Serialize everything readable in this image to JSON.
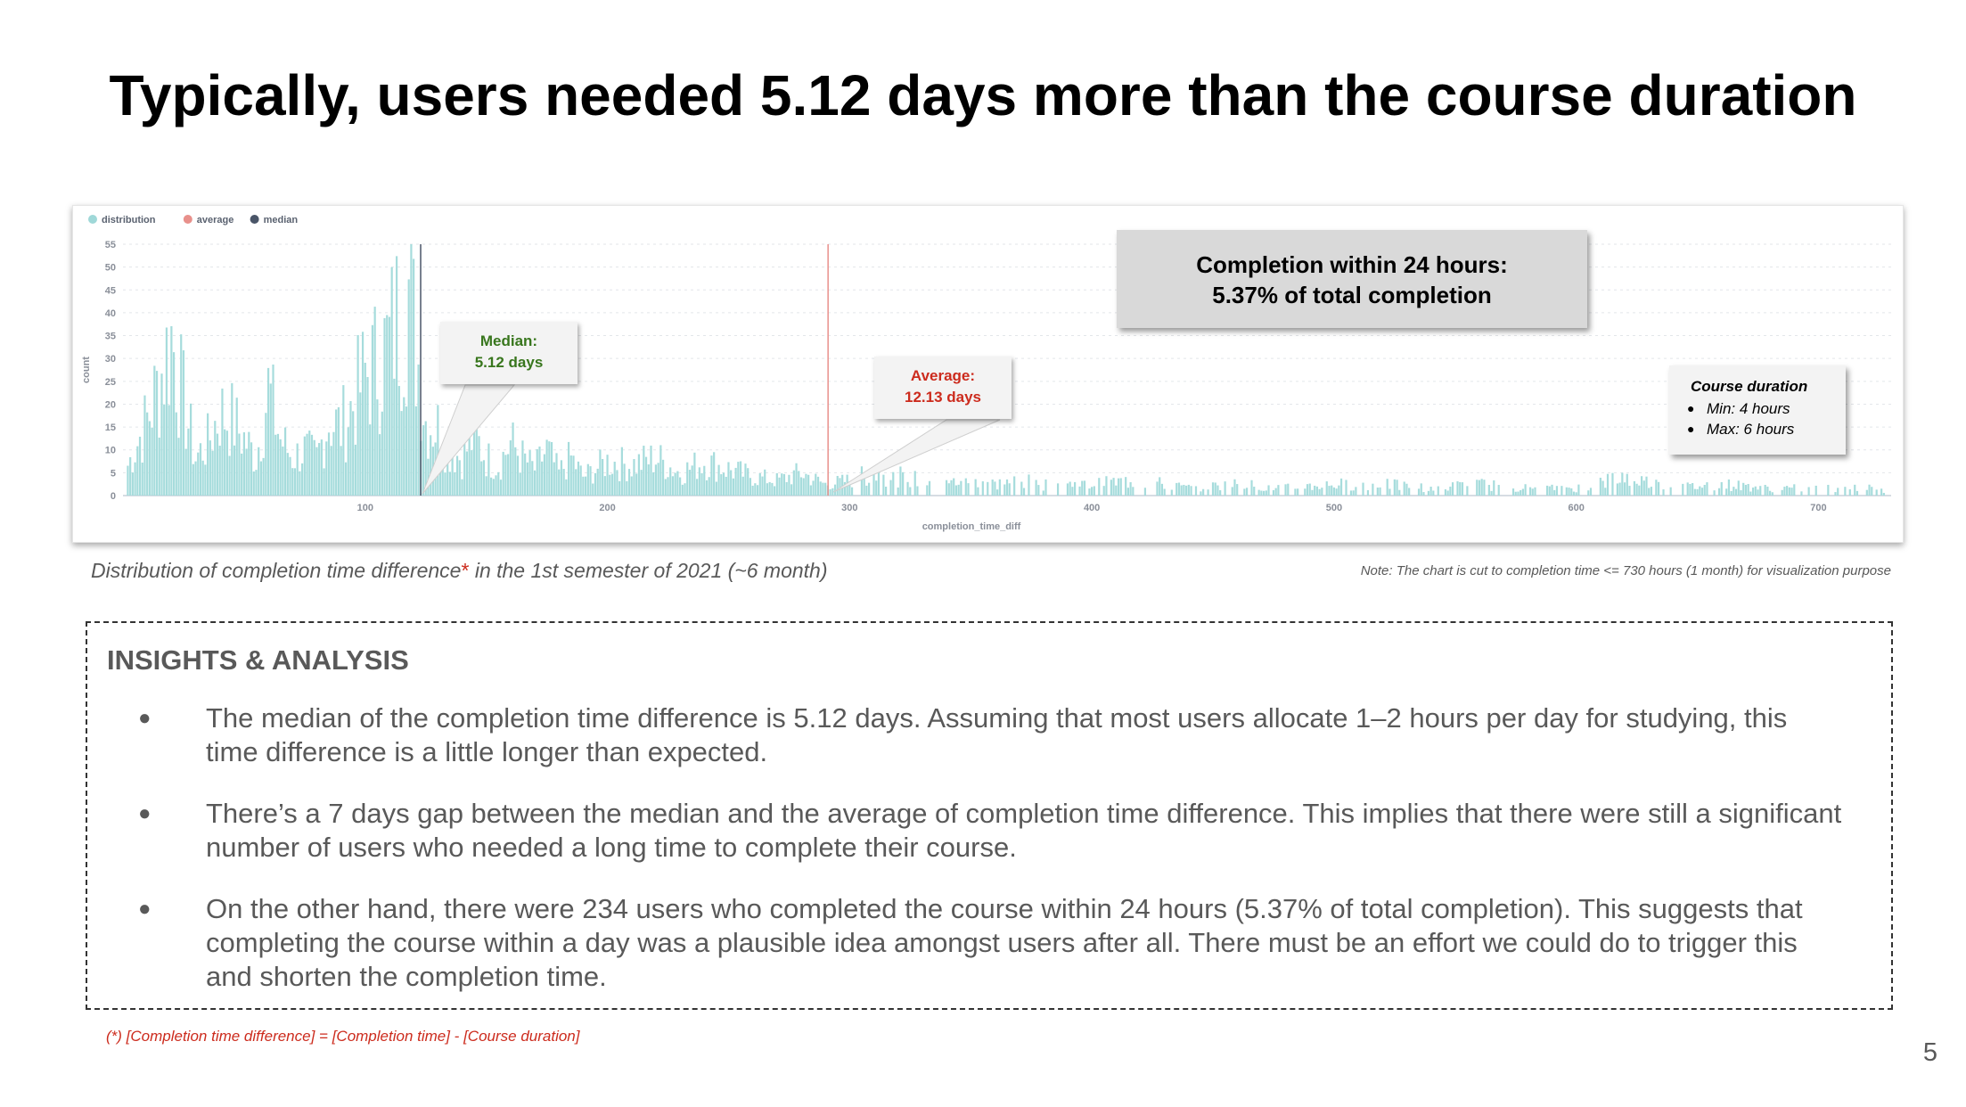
{
  "slide": {
    "title": "Typically, users needed 5.12 days more than the course duration",
    "page_number": "5"
  },
  "chart": {
    "legend": [
      {
        "label": "distribution",
        "color": "#9fd8d8"
      },
      {
        "label": "average",
        "color": "#e8908b"
      },
      {
        "label": "median",
        "color": "#4a5568"
      }
    ],
    "callouts": {
      "median_label": "Median:",
      "median_value": "5.12 days",
      "average_label": "Average:",
      "average_value": "12.13 days",
      "completion_line1": "Completion within 24 hours:",
      "completion_line2": "5.37% of total completion",
      "duration_title": "Course duration",
      "duration_min": "Min: 4 hours",
      "duration_max": "Max: 6 hours"
    },
    "caption_before": "Distribution of completion time difference",
    "caption_star": "*",
    "caption_after": " in the 1st semester of 2021 (~6 month)",
    "note": "Note: The chart is cut to completion time <= 730 hours (1 month) for visualization purpose"
  },
  "chart_data": {
    "type": "bar",
    "xlabel": "completion_time_diff",
    "ylabel": "count",
    "xlim": [
      0,
      730
    ],
    "ylim": [
      0,
      55
    ],
    "y_ticks": [
      0,
      5,
      10,
      15,
      20,
      25,
      30,
      35,
      40,
      45,
      50,
      55
    ],
    "x_ticks": [
      100,
      200,
      300,
      400,
      500,
      600,
      700
    ],
    "median": 122.9,
    "average": 291.1,
    "series": [
      {
        "name": "distribution",
        "x": [
          0,
          10,
          15,
          20,
          25,
          30,
          35,
          40,
          45,
          50,
          55,
          60,
          65,
          70,
          75,
          80,
          85,
          90,
          95,
          100,
          105,
          110,
          112,
          115,
          118,
          120,
          125,
          130,
          135,
          140,
          145,
          150,
          155,
          160,
          165,
          170,
          175,
          180,
          185,
          190,
          200,
          210,
          220,
          230,
          240,
          250,
          260,
          270,
          280,
          290,
          300,
          310,
          320,
          330,
          340,
          350,
          360,
          370,
          380,
          390,
          400,
          420,
          440,
          460,
          480,
          500,
          520,
          540,
          560,
          580,
          600,
          620,
          640,
          660,
          680,
          700,
          720,
          730
        ],
        "values": [
          5,
          20,
          30,
          42,
          25,
          10,
          14,
          22,
          20,
          15,
          10,
          28,
          15,
          10,
          12,
          10,
          20,
          18,
          24,
          32,
          35,
          40,
          45,
          48,
          55,
          45,
          20,
          18,
          12,
          10,
          16,
          10,
          8,
          14,
          10,
          7,
          12,
          6,
          10,
          5,
          9,
          8,
          10,
          6,
          9,
          7,
          5,
          4,
          6,
          3,
          4,
          6,
          5,
          4,
          3,
          5,
          3,
          4,
          3,
          3,
          3,
          4,
          2,
          3,
          2,
          3,
          3,
          2,
          3,
          2,
          2,
          5,
          2,
          3,
          2,
          2,
          2,
          1
        ]
      }
    ]
  },
  "insights": {
    "heading": "INSIGHTS & ANALYSIS",
    "items": [
      "The median of the completion time difference is 5.12 days. Assuming that most users allocate 1–2 hours per day for studying, this time difference is a little longer than expected.",
      "There’s a 7 days gap between the median and the average of completion time difference. This implies that there were still a significant number of users who needed a long time to complete their course.",
      "On the other hand, there were 234 users who completed the course within 24 hours (5.37% of total completion). This suggests that completing the course within a day was a plausible idea amongst users after all. There must be an effort we could do to trigger this and shorten the completion time."
    ]
  },
  "footnote": "(*) [Completion time difference] = [Completion time] - [Course duration]"
}
